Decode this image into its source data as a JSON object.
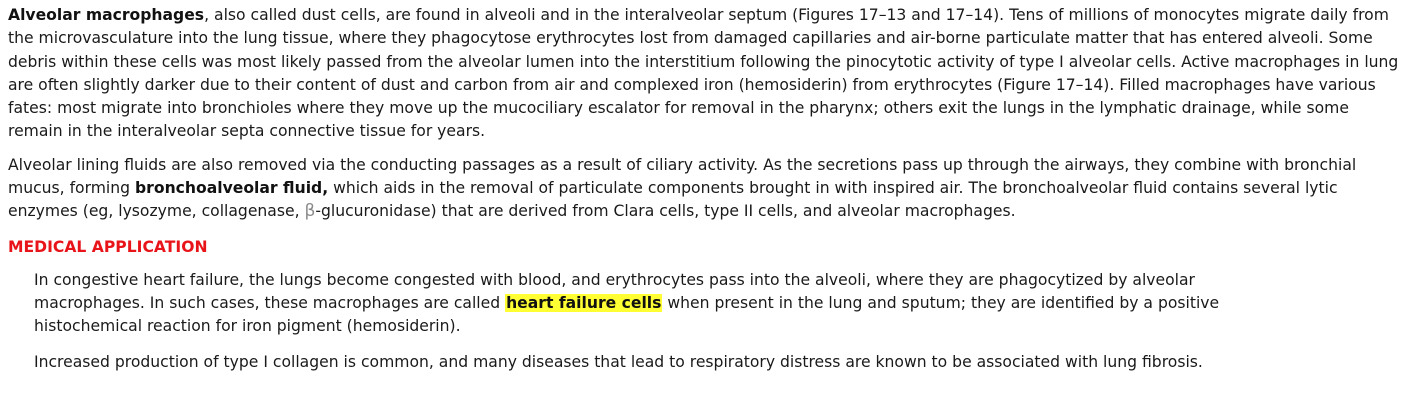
{
  "p1": {
    "term": "Alveolar macrophages",
    "text": ", also called dust cells, are found in alveoli and in the interalveolar septum (Figures 17–13 and 17–14). Tens of millions of monocytes migrate daily from the microvasculature into the lung tissue, where they phagocytose erythrocytes lost from damaged capillaries and air-borne particulate matter that has entered alveoli. Some debris within these cells was most likely passed from the alveolar lumen into the interstitium following the pinocytotic activity of type I alveolar cells. Active macrophages in lung are often slightly darker due to their content of dust and carbon from air and complexed iron (hemosiderin) from erythrocytes (Figure 17–14). Filled macrophages have various fates: most migrate into bronchioles where they move up the mucociliary escalator for removal in the pharynx; others exit the lungs in the lymphatic drainage, while some remain in the interalveolar septa connective tissue for years."
  },
  "p2": {
    "text_a": "Alveolar lining fluids are also removed via the conducting passages as a result of ciliary activity. As the secretions pass up through the airways, they combine with bronchial mucus, forming ",
    "term": "bronchoalveolar fluid,",
    "text_b": " which aids in the removal of particulate components brought in with inspired air. The bronchoalveolar fluid contains several lytic enzymes (eg, lysozyme, collagenase, ",
    "beta": "β",
    "text_c": "-glucuronidase) that are derived from Clara cells, type II cells, and alveolar macrophages."
  },
  "medical": {
    "heading": "MEDICAL APPLICATION",
    "heading_color": "#e8141a",
    "highlight_color": "#ffff33",
    "p3": {
      "text_a": "In congestive heart failure, the lungs become congested with blood, and erythrocytes pass into the alveoli, where they are phagocytized by alveolar macrophages. In such cases, these macrophages are called ",
      "highlight": "heart failure cells",
      "text_b": " when present in the lung and sputum; they are identified by a positive histochemical reaction for iron pigment (hemosiderin)."
    },
    "p4": {
      "text": "Increased production of type I collagen is common, and many diseases that lead to respiratory distress are known to be associated with lung fibrosis."
    }
  }
}
